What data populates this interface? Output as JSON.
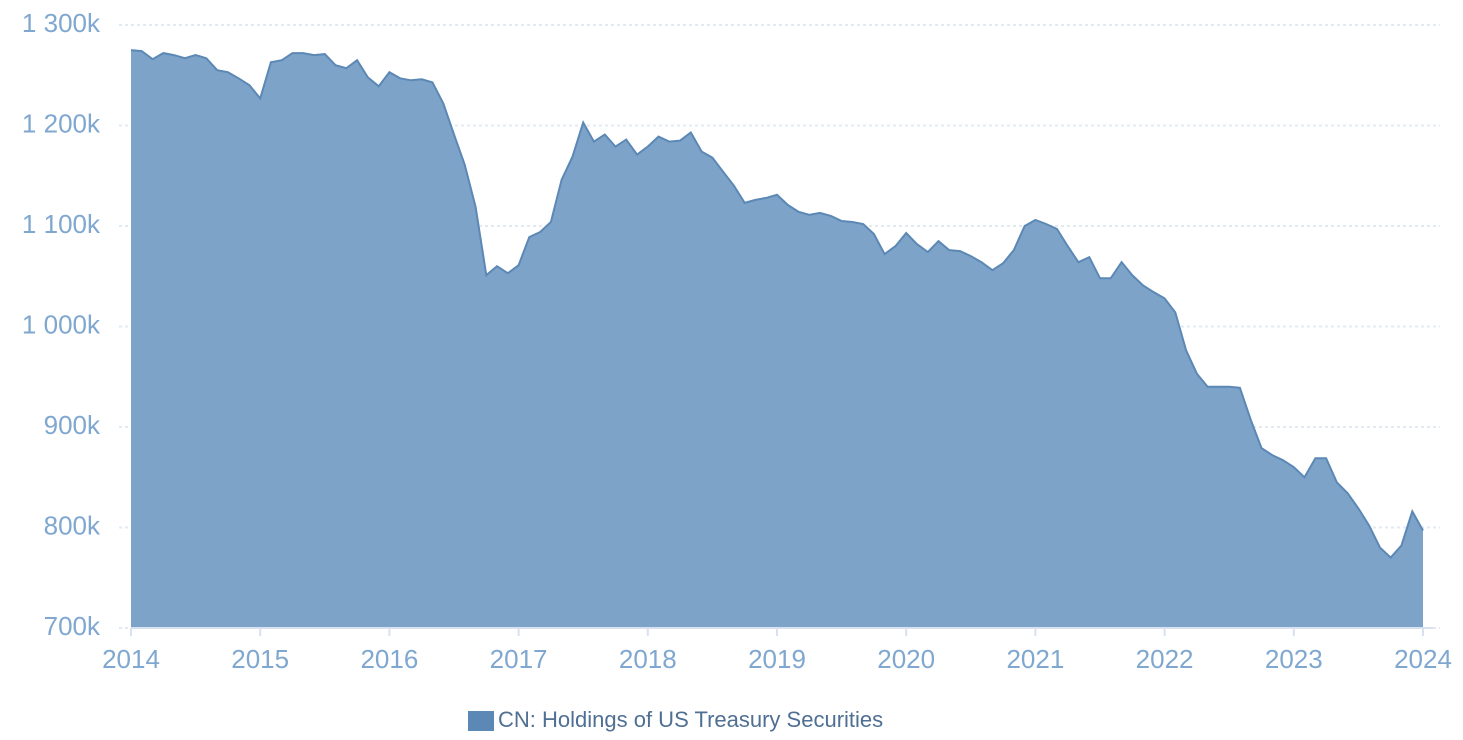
{
  "chart_data": {
    "type": "area",
    "x": [
      2014,
      2014.083,
      2014.167,
      2014.25,
      2014.333,
      2014.417,
      2014.5,
      2014.583,
      2014.667,
      2014.75,
      2014.833,
      2014.917,
      2015,
      2015.083,
      2015.167,
      2015.25,
      2015.333,
      2015.417,
      2015.5,
      2015.583,
      2015.667,
      2015.75,
      2015.833,
      2015.917,
      2016,
      2016.083,
      2016.167,
      2016.25,
      2016.333,
      2016.417,
      2016.5,
      2016.583,
      2016.667,
      2016.75,
      2016.833,
      2016.917,
      2017,
      2017.083,
      2017.167,
      2017.25,
      2017.333,
      2017.417,
      2017.5,
      2017.583,
      2017.667,
      2017.75,
      2017.833,
      2017.917,
      2018,
      2018.083,
      2018.167,
      2018.25,
      2018.333,
      2018.417,
      2018.5,
      2018.583,
      2018.667,
      2018.75,
      2018.833,
      2018.917,
      2019,
      2019.083,
      2019.167,
      2019.25,
      2019.333,
      2019.417,
      2019.5,
      2019.583,
      2019.667,
      2019.75,
      2019.833,
      2019.917,
      2020,
      2020.083,
      2020.167,
      2020.25,
      2020.333,
      2020.417,
      2020.5,
      2020.583,
      2020.667,
      2020.75,
      2020.833,
      2020.917,
      2021,
      2021.083,
      2021.167,
      2021.25,
      2021.333,
      2021.417,
      2021.5,
      2021.583,
      2021.667,
      2021.75,
      2021.833,
      2021.917,
      2022,
      2022.083,
      2022.167,
      2022.25,
      2022.333,
      2022.417,
      2022.5,
      2022.583,
      2022.667,
      2022.75,
      2022.833,
      2022.917,
      2023,
      2023.083,
      2023.167,
      2023.25,
      2023.333,
      2023.417,
      2023.5,
      2023.583,
      2023.667,
      2023.75,
      2023.833,
      2023.917,
      2024
    ],
    "series": [
      {
        "name": "CN: Holdings of US Treasury Securities",
        "color": "#5b88b5",
        "fill": "#7ea3c8",
        "values": [
          1275000,
          1274000,
          1266000,
          1272000,
          1270000,
          1267000,
          1270000,
          1267000,
          1255000,
          1253000,
          1247000,
          1240000,
          1227000,
          1263000,
          1265000,
          1272000,
          1272000,
          1270000,
          1271000,
          1260000,
          1257000,
          1265000,
          1248000,
          1239000,
          1253000,
          1247000,
          1245000,
          1246000,
          1243000,
          1222000,
          1191000,
          1161000,
          1119000,
          1051000,
          1060000,
          1053000,
          1061000,
          1089000,
          1094000,
          1104000,
          1146000,
          1169000,
          1203000,
          1184000,
          1191000,
          1179000,
          1186000,
          1171000,
          1179000,
          1189000,
          1184000,
          1185000,
          1193000,
          1174000,
          1168000,
          1154000,
          1140000,
          1123000,
          1126000,
          1128000,
          1131000,
          1121000,
          1114000,
          1111000,
          1113000,
          1110000,
          1105000,
          1104000,
          1102000,
          1092000,
          1072000,
          1080000,
          1093000,
          1082000,
          1074000,
          1085000,
          1076000,
          1075000,
          1070000,
          1064000,
          1056000,
          1063000,
          1076000,
          1100000,
          1106000,
          1102000,
          1097000,
          1080000,
          1064000,
          1069000,
          1048000,
          1048000,
          1064000,
          1051000,
          1041000,
          1034000,
          1028000,
          1014000,
          976000,
          953000,
          940000,
          940000,
          940000,
          939000,
          907000,
          879000,
          872000,
          867000,
          860000,
          850000,
          869000,
          869000,
          845000,
          834000,
          819000,
          802000,
          780000,
          770000,
          782000,
          816000,
          797000
        ]
      }
    ],
    "xlim": [
      2014,
      2024
    ],
    "xticks": [
      2014,
      2015,
      2016,
      2017,
      2018,
      2019,
      2020,
      2021,
      2022,
      2023,
      2024
    ],
    "ylim": [
      700000,
      1300000
    ],
    "yticks": [
      {
        "value": 700000,
        "label": "700k"
      },
      {
        "value": 800000,
        "label": "800k"
      },
      {
        "value": 900000,
        "label": "900k"
      },
      {
        "value": 1000000,
        "label": "1 000k"
      },
      {
        "value": 1100000,
        "label": "1 100k"
      },
      {
        "value": 1200000,
        "label": "1 200k"
      },
      {
        "value": 1300000,
        "label": "1 300k"
      }
    ],
    "grid": true,
    "legend": "bottom"
  }
}
